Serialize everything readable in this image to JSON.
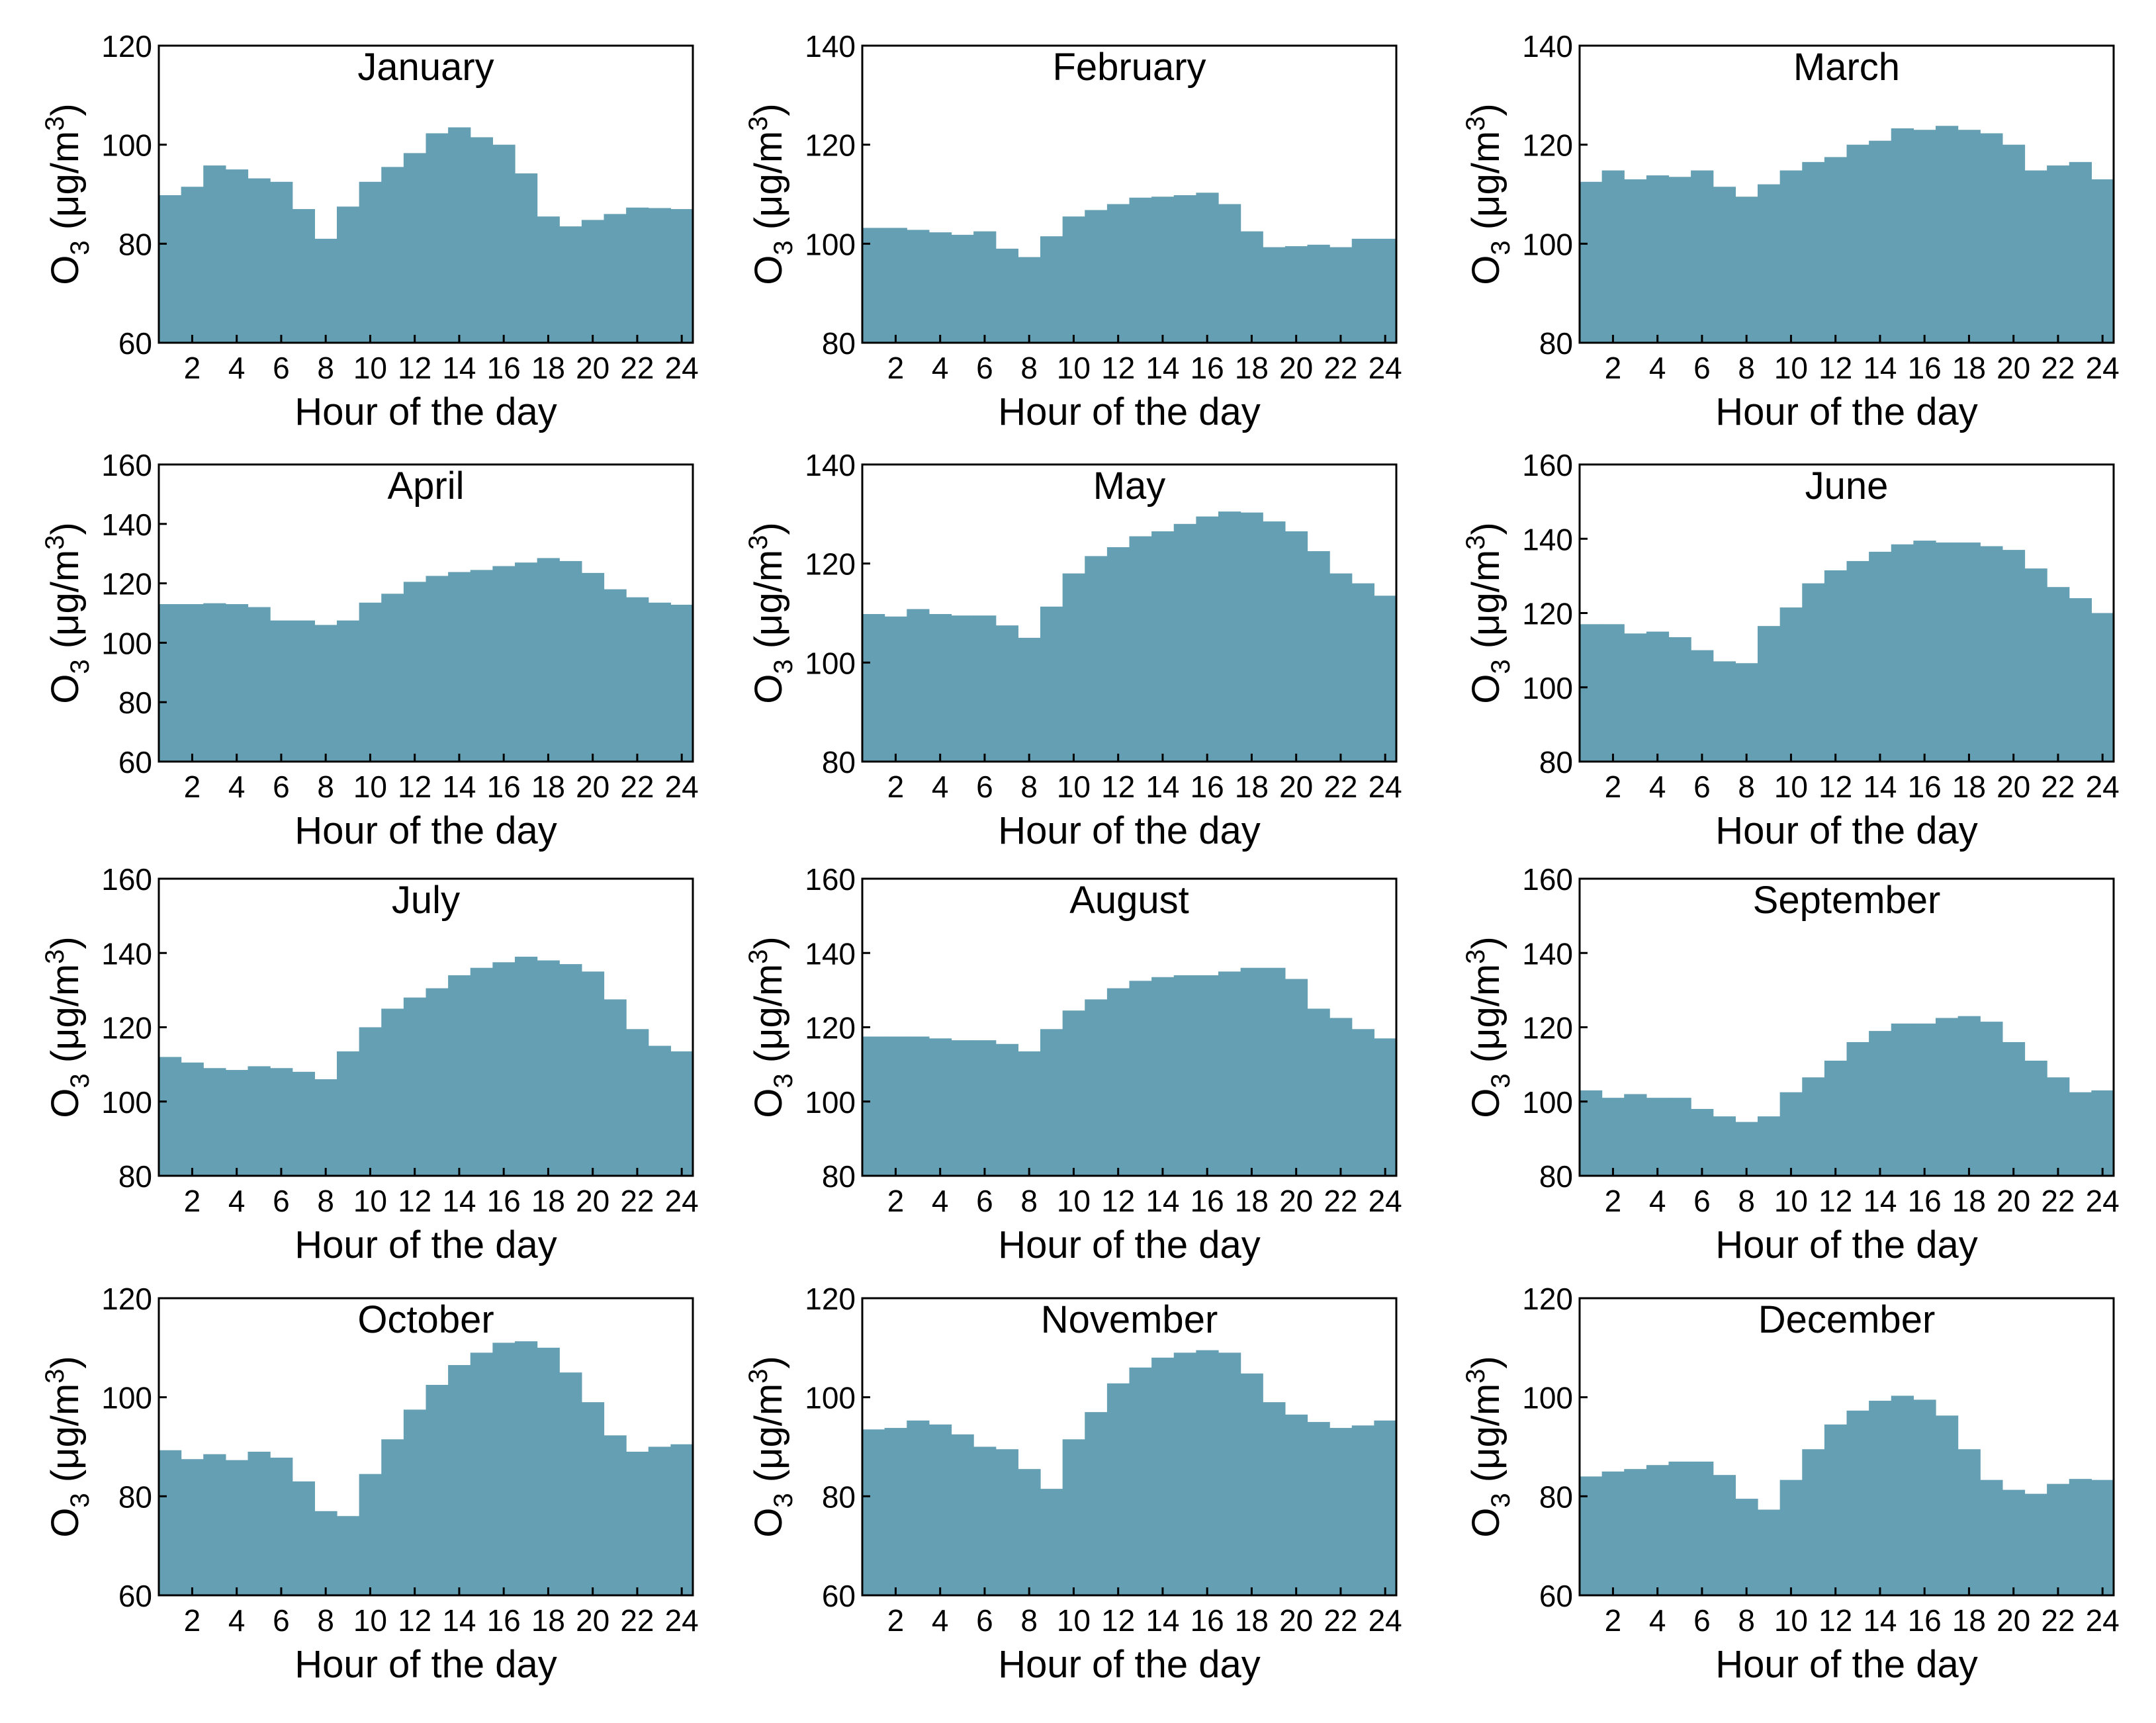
{
  "colors": {
    "bar_fill": "#659fb3",
    "axis": "#000000",
    "background": "#ffffff"
  },
  "chart_data": [
    {
      "type": "bar",
      "title": "January",
      "xlabel": "Hour of the day",
      "ylabel_base": "O",
      "ylabel_sub": "3",
      "ylabel_unit": " (μg/m",
      "ylabel_sup": "3",
      "ylabel_close": ")",
      "ylim": [
        60,
        120
      ],
      "yticks": [
        60,
        80,
        100,
        120
      ],
      "xticks": [
        2,
        4,
        6,
        8,
        10,
        12,
        14,
        16,
        18,
        20,
        22,
        24
      ],
      "categories": [
        1,
        2,
        3,
        4,
        5,
        6,
        7,
        8,
        9,
        10,
        11,
        12,
        13,
        14,
        15,
        16,
        17,
        18,
        19,
        20,
        21,
        22,
        23,
        24
      ],
      "values": [
        89.8,
        91.5,
        95.8,
        95.0,
        93.2,
        92.5,
        87.0,
        81.0,
        87.5,
        92.5,
        95.5,
        98.3,
        102.3,
        103.5,
        101.5,
        100.0,
        94.2,
        85.5,
        83.5,
        84.8,
        86.0,
        87.3,
        87.2,
        87.0
      ]
    },
    {
      "type": "bar",
      "title": "February",
      "xlabel": "Hour of the day",
      "ylabel_base": "O",
      "ylabel_sub": "3",
      "ylabel_unit": " (μg/m",
      "ylabel_sup": "3",
      "ylabel_close": ")",
      "ylim": [
        80,
        140
      ],
      "yticks": [
        80,
        100,
        120,
        140
      ],
      "xticks": [
        2,
        4,
        6,
        8,
        10,
        12,
        14,
        16,
        18,
        20,
        22,
        24
      ],
      "categories": [
        1,
        2,
        3,
        4,
        5,
        6,
        7,
        8,
        9,
        10,
        11,
        12,
        13,
        14,
        15,
        16,
        17,
        18,
        19,
        20,
        21,
        22,
        23,
        24
      ],
      "values": [
        103.2,
        103.2,
        102.8,
        102.3,
        101.8,
        102.5,
        99.0,
        97.3,
        101.5,
        105.5,
        106.8,
        108.0,
        109.3,
        109.5,
        109.8,
        110.3,
        108.0,
        102.5,
        99.3,
        99.5,
        99.8,
        99.3,
        101.0,
        101.0
      ]
    },
    {
      "type": "bar",
      "title": "March",
      "xlabel": "Hour of the day",
      "ylabel_base": "O",
      "ylabel_sub": "3",
      "ylabel_unit": " (μg/m",
      "ylabel_sup": "3",
      "ylabel_close": ")",
      "ylim": [
        80,
        140
      ],
      "yticks": [
        80,
        100,
        120,
        140
      ],
      "xticks": [
        2,
        4,
        6,
        8,
        10,
        12,
        14,
        16,
        18,
        20,
        22,
        24
      ],
      "categories": [
        1,
        2,
        3,
        4,
        5,
        6,
        7,
        8,
        9,
        10,
        11,
        12,
        13,
        14,
        15,
        16,
        17,
        18,
        19,
        20,
        21,
        22,
        23,
        24
      ],
      "values": [
        112.5,
        114.8,
        113.0,
        113.8,
        113.5,
        114.8,
        111.5,
        109.5,
        112.0,
        114.8,
        116.5,
        117.5,
        120.0,
        120.8,
        123.3,
        123.0,
        123.8,
        123.0,
        122.3,
        120.0,
        114.8,
        115.8,
        116.5,
        113.0
      ]
    },
    {
      "type": "bar",
      "title": "April",
      "xlabel": "Hour of the day",
      "ylabel_base": "O",
      "ylabel_sub": "3",
      "ylabel_unit": " (μg/m",
      "ylabel_sup": "3",
      "ylabel_close": ")",
      "ylim": [
        60,
        160
      ],
      "yticks": [
        60,
        80,
        100,
        120,
        140,
        160
      ],
      "xticks": [
        2,
        4,
        6,
        8,
        10,
        12,
        14,
        16,
        18,
        20,
        22,
        24
      ],
      "categories": [
        1,
        2,
        3,
        4,
        5,
        6,
        7,
        8,
        9,
        10,
        11,
        12,
        13,
        14,
        15,
        16,
        17,
        18,
        19,
        20,
        21,
        22,
        23,
        24
      ],
      "values": [
        113.0,
        113.0,
        113.3,
        113.0,
        112.0,
        107.5,
        107.5,
        106.0,
        107.5,
        113.5,
        116.5,
        120.5,
        122.5,
        123.8,
        124.5,
        125.8,
        127.0,
        128.5,
        127.5,
        123.5,
        118.0,
        115.3,
        113.5,
        112.8
      ]
    },
    {
      "type": "bar",
      "title": "May",
      "xlabel": "Hour of the day",
      "ylabel_base": "O",
      "ylabel_sub": "3",
      "ylabel_unit": " (μg/m",
      "ylabel_sup": "3",
      "ylabel_close": ")",
      "ylim": [
        80,
        140
      ],
      "yticks": [
        80,
        100,
        120,
        140
      ],
      "xticks": [
        2,
        4,
        6,
        8,
        10,
        12,
        14,
        16,
        18,
        20,
        22,
        24
      ],
      "categories": [
        1,
        2,
        3,
        4,
        5,
        6,
        7,
        8,
        9,
        10,
        11,
        12,
        13,
        14,
        15,
        16,
        17,
        18,
        19,
        20,
        21,
        22,
        23,
        24
      ],
      "values": [
        109.8,
        109.3,
        110.8,
        109.8,
        109.5,
        109.5,
        107.5,
        105.0,
        111.3,
        118.0,
        121.5,
        123.3,
        125.5,
        126.5,
        128.0,
        129.5,
        130.5,
        130.3,
        128.5,
        126.5,
        122.5,
        118.0,
        116.0,
        113.5
      ]
    },
    {
      "type": "bar",
      "title": "June",
      "xlabel": "Hour of the day",
      "ylabel_base": "O",
      "ylabel_sub": "3",
      "ylabel_unit": " (μg/m",
      "ylabel_sup": "3",
      "ylabel_close": ")",
      "ylim": [
        80,
        160
      ],
      "yticks": [
        80,
        100,
        120,
        140,
        160
      ],
      "xticks": [
        2,
        4,
        6,
        8,
        10,
        12,
        14,
        16,
        18,
        20,
        22,
        24
      ],
      "categories": [
        1,
        2,
        3,
        4,
        5,
        6,
        7,
        8,
        9,
        10,
        11,
        12,
        13,
        14,
        15,
        16,
        17,
        18,
        19,
        20,
        21,
        22,
        23,
        24
      ],
      "values": [
        117.0,
        117.0,
        114.5,
        115.0,
        113.5,
        110.0,
        107.0,
        106.5,
        116.5,
        121.5,
        128.0,
        131.5,
        134.0,
        136.5,
        138.5,
        139.5,
        139.0,
        139.0,
        138.0,
        137.0,
        132.0,
        127.0,
        124.0,
        120.0
      ]
    },
    {
      "type": "bar",
      "title": "July",
      "xlabel": "Hour of the day",
      "ylabel_base": "O",
      "ylabel_sub": "3",
      "ylabel_unit": " (μg/m",
      "ylabel_sup": "3",
      "ylabel_close": ")",
      "ylim": [
        80,
        160
      ],
      "yticks": [
        80,
        100,
        120,
        140,
        160
      ],
      "xticks": [
        2,
        4,
        6,
        8,
        10,
        12,
        14,
        16,
        18,
        20,
        22,
        24
      ],
      "categories": [
        1,
        2,
        3,
        4,
        5,
        6,
        7,
        8,
        9,
        10,
        11,
        12,
        13,
        14,
        15,
        16,
        17,
        18,
        19,
        20,
        21,
        22,
        23,
        24
      ],
      "values": [
        112.0,
        110.5,
        109.0,
        108.5,
        109.5,
        109.0,
        108.0,
        106.0,
        113.5,
        120.0,
        125.0,
        128.0,
        130.5,
        134.0,
        136.0,
        137.5,
        139.0,
        138.0,
        137.0,
        135.0,
        127.5,
        119.5,
        115.0,
        113.5
      ]
    },
    {
      "type": "bar",
      "title": "August",
      "xlabel": "Hour of the day",
      "ylabel_base": "O",
      "ylabel_sub": "3",
      "ylabel_unit": " (μg/m",
      "ylabel_sup": "3",
      "ylabel_close": ")",
      "ylim": [
        80,
        160
      ],
      "yticks": [
        80,
        100,
        120,
        140,
        160
      ],
      "xticks": [
        2,
        4,
        6,
        8,
        10,
        12,
        14,
        16,
        18,
        20,
        22,
        24
      ],
      "categories": [
        1,
        2,
        3,
        4,
        5,
        6,
        7,
        8,
        9,
        10,
        11,
        12,
        13,
        14,
        15,
        16,
        17,
        18,
        19,
        20,
        21,
        22,
        23,
        24
      ],
      "values": [
        117.5,
        117.5,
        117.5,
        117.0,
        116.5,
        116.5,
        115.5,
        113.5,
        119.5,
        124.5,
        127.5,
        130.5,
        132.5,
        133.5,
        134.0,
        134.0,
        135.0,
        136.0,
        136.0,
        133.0,
        125.0,
        122.5,
        119.5,
        117.0
      ]
    },
    {
      "type": "bar",
      "title": "September",
      "xlabel": "Hour of the day",
      "ylabel_base": "O",
      "ylabel_sub": "3",
      "ylabel_unit": " (μg/m",
      "ylabel_sup": "3",
      "ylabel_close": ")",
      "ylim": [
        80,
        160
      ],
      "yticks": [
        80,
        100,
        120,
        140,
        160
      ],
      "xticks": [
        2,
        4,
        6,
        8,
        10,
        12,
        14,
        16,
        18,
        20,
        22,
        24
      ],
      "categories": [
        1,
        2,
        3,
        4,
        5,
        6,
        7,
        8,
        9,
        10,
        11,
        12,
        13,
        14,
        15,
        16,
        17,
        18,
        19,
        20,
        21,
        22,
        23,
        24
      ],
      "values": [
        103.0,
        101.0,
        102.0,
        101.0,
        101.0,
        98.0,
        96.0,
        94.5,
        96.0,
        102.5,
        106.5,
        111.0,
        116.0,
        119.0,
        121.0,
        121.0,
        122.5,
        123.0,
        121.5,
        116.0,
        111.0,
        106.5,
        102.5,
        103.0
      ]
    },
    {
      "type": "bar",
      "title": "October",
      "xlabel": "Hour of the day",
      "ylabel_base": "O",
      "ylabel_sub": "3",
      "ylabel_unit": " (μg/m",
      "ylabel_sup": "3",
      "ylabel_close": ")",
      "ylim": [
        60,
        120
      ],
      "yticks": [
        60,
        80,
        100,
        120
      ],
      "xticks": [
        2,
        4,
        6,
        8,
        10,
        12,
        14,
        16,
        18,
        20,
        22,
        24
      ],
      "categories": [
        1,
        2,
        3,
        4,
        5,
        6,
        7,
        8,
        9,
        10,
        11,
        12,
        13,
        14,
        15,
        16,
        17,
        18,
        19,
        20,
        21,
        22,
        23,
        24
      ],
      "values": [
        89.3,
        87.5,
        88.5,
        87.3,
        89.0,
        87.8,
        83.0,
        77.0,
        76.0,
        84.5,
        91.5,
        97.5,
        102.5,
        106.5,
        109.0,
        111.0,
        111.3,
        110.0,
        105.0,
        99.0,
        92.3,
        89.0,
        90.0,
        90.5
      ]
    },
    {
      "type": "bar",
      "title": "November",
      "xlabel": "Hour of the day",
      "ylabel_base": "O",
      "ylabel_sub": "3",
      "ylabel_unit": " (μg/m",
      "ylabel_sup": "3",
      "ylabel_close": ")",
      "ylim": [
        60,
        120
      ],
      "yticks": [
        60,
        80,
        100,
        120
      ],
      "xticks": [
        2,
        4,
        6,
        8,
        10,
        12,
        14,
        16,
        18,
        20,
        22,
        24
      ],
      "categories": [
        1,
        2,
        3,
        4,
        5,
        6,
        7,
        8,
        9,
        10,
        11,
        12,
        13,
        14,
        15,
        16,
        17,
        18,
        19,
        20,
        21,
        22,
        23,
        24
      ],
      "values": [
        93.5,
        93.8,
        95.3,
        94.5,
        92.5,
        90.0,
        89.5,
        85.5,
        81.5,
        91.5,
        97.0,
        102.8,
        106.0,
        108.0,
        109.0,
        109.5,
        109.0,
        104.8,
        99.0,
        96.5,
        95.0,
        93.8,
        94.3,
        95.3
      ]
    },
    {
      "type": "bar",
      "title": "December",
      "xlabel": "Hour of the day",
      "ylabel_base": "O",
      "ylabel_sub": "3",
      "ylabel_unit": " (μg/m",
      "ylabel_sup": "3",
      "ylabel_close": ")",
      "ylim": [
        60,
        120
      ],
      "yticks": [
        60,
        80,
        100,
        120
      ],
      "xticks": [
        2,
        4,
        6,
        8,
        10,
        12,
        14,
        16,
        18,
        20,
        22,
        24
      ],
      "categories": [
        1,
        2,
        3,
        4,
        5,
        6,
        7,
        8,
        9,
        10,
        11,
        12,
        13,
        14,
        15,
        16,
        17,
        18,
        19,
        20,
        21,
        22,
        23,
        24
      ],
      "values": [
        84.0,
        85.0,
        85.5,
        86.3,
        87.0,
        87.0,
        84.3,
        79.5,
        77.3,
        83.3,
        89.5,
        94.5,
        97.3,
        99.3,
        100.3,
        99.5,
        96.3,
        89.5,
        83.3,
        81.3,
        80.5,
        82.5,
        83.5,
        83.3
      ]
    }
  ]
}
